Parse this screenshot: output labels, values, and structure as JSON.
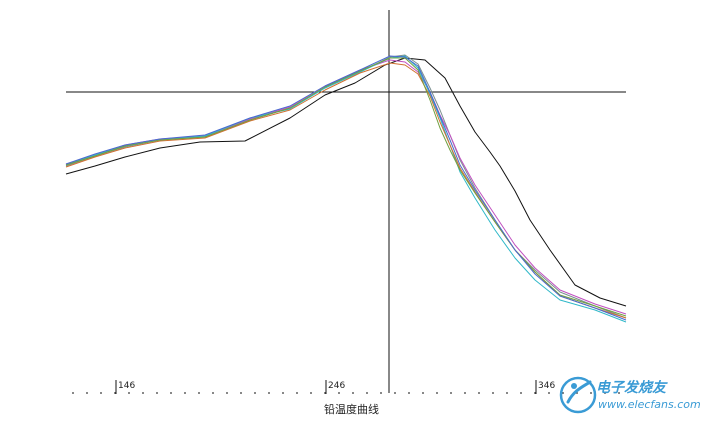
{
  "chart_data": {
    "type": "line",
    "title": "",
    "caption": "铅温度曲线",
    "xlabel": "",
    "ylabel": "",
    "x_ticks": [
      "146",
      "246",
      "346"
    ],
    "xlim": [
      0,
      703
    ],
    "ylim": [
      0,
      427
    ],
    "grid": false,
    "legend": "none",
    "crosshair": {
      "x": 389,
      "y": 92
    },
    "series": [
      {
        "color": "#111111",
        "x": [
          66,
          95,
          125,
          160,
          200,
          245,
          290,
          325,
          355,
          385,
          405,
          425,
          445,
          460,
          475,
          490,
          500,
          515,
          530,
          550,
          575,
          600,
          626
        ],
        "y": [
          174,
          166,
          157,
          148,
          142,
          141,
          118,
          95,
          83,
          65,
          58,
          60,
          78,
          106,
          132,
          152,
          166,
          191,
          220,
          250,
          285,
          298,
          306
        ]
      },
      {
        "color": "#7a8f8f",
        "x": [
          66,
          95,
          125,
          160,
          205,
          250,
          290,
          325,
          360,
          390,
          405,
          418,
          430,
          440,
          450,
          460,
          475,
          495,
          515,
          535,
          560,
          595,
          626
        ],
        "y": [
          166,
          156,
          147,
          140,
          137,
          120,
          108,
          88,
          72,
          57,
          55,
          64,
          88,
          110,
          135,
          160,
          188,
          220,
          250,
          270,
          292,
          306,
          318
        ]
      },
      {
        "color": "#c050c0",
        "x": [
          66,
          95,
          125,
          160,
          205,
          250,
          290,
          325,
          360,
          390,
          405,
          418,
          430,
          440,
          450,
          460,
          475,
          495,
          515,
          535,
          560,
          595,
          626
        ],
        "y": [
          164,
          155,
          145,
          139,
          136,
          119,
          107,
          86,
          70,
          60,
          62,
          72,
          92,
          115,
          135,
          158,
          185,
          215,
          245,
          268,
          290,
          304,
          314
        ]
      },
      {
        "color": "#30b8c8",
        "x": [
          66,
          95,
          125,
          160,
          205,
          250,
          290,
          325,
          360,
          390,
          405,
          418,
          430,
          440,
          450,
          460,
          475,
          495,
          515,
          535,
          560,
          595,
          626
        ],
        "y": [
          165,
          155,
          146,
          140,
          136,
          118,
          109,
          88,
          72,
          58,
          56,
          68,
          94,
          118,
          145,
          172,
          198,
          230,
          258,
          280,
          300,
          310,
          322
        ]
      },
      {
        "color": "#d07030",
        "x": [
          66,
          95,
          125,
          160,
          205,
          250,
          290,
          325,
          360,
          390,
          405,
          418,
          430,
          440,
          450,
          460,
          475,
          495,
          515,
          535,
          560,
          595,
          626
        ],
        "y": [
          167,
          157,
          148,
          141,
          138,
          121,
          110,
          90,
          73,
          63,
          65,
          74,
          96,
          122,
          145,
          168,
          192,
          222,
          250,
          272,
          296,
          308,
          318
        ]
      },
      {
        "color": "#70a040",
        "x": [
          66,
          95,
          125,
          160,
          205,
          250,
          290,
          325,
          360,
          390,
          405,
          418,
          430,
          440,
          450,
          460,
          475,
          495,
          515,
          535,
          560,
          595,
          626
        ],
        "y": [
          165,
          156,
          146,
          140,
          137,
          120,
          108,
          87,
          71,
          58,
          58,
          70,
          100,
          128,
          150,
          170,
          193,
          222,
          250,
          272,
          295,
          306,
          316
        ]
      },
      {
        "color": "#4a6ad0",
        "x": [
          66,
          95,
          125,
          160,
          205,
          250,
          290,
          325,
          360,
          390,
          405,
          418,
          430,
          440,
          450,
          460,
          475,
          495,
          515,
          535,
          560,
          595,
          626
        ],
        "y": [
          164,
          154,
          145,
          139,
          135,
          118,
          106,
          86,
          70,
          56,
          57,
          66,
          92,
          116,
          140,
          165,
          190,
          220,
          250,
          274,
          296,
          308,
          320
        ]
      }
    ]
  },
  "watermark": {
    "text_cn": "电子发烧友",
    "text_en": "www.elecfans.com",
    "colors": {
      "primary": "#3a9bd5"
    }
  }
}
